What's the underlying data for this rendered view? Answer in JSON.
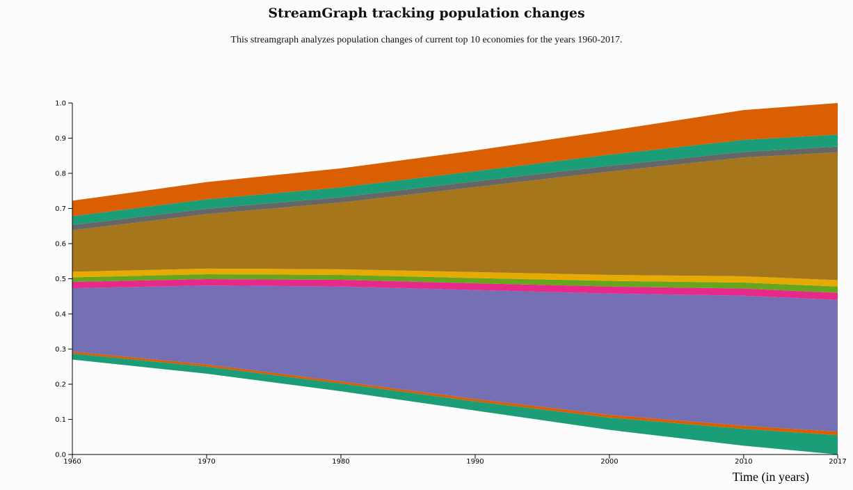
{
  "header": {
    "title": "StreamGraph tracking population changes",
    "subtitle": "This streamgraph analyzes population changes of current top 10 economies for the years 1960-2017."
  },
  "chart_data": {
    "type": "area",
    "title": "StreamGraph tracking population changes",
    "xlabel": "Time (in years)",
    "ylabel": "",
    "xlim": [
      1960,
      2017
    ],
    "ylim": [
      0,
      1.0
    ],
    "x_ticks": [
      "1960",
      "1970",
      "1980",
      "1990",
      "2000",
      "2010",
      "2017"
    ],
    "y_ticks": [
      "0.0",
      "0.1",
      "0.2",
      "0.3",
      "0.4",
      "0.5",
      "0.6",
      "0.7",
      "0.8",
      "0.9",
      "1.0"
    ],
    "grid": false,
    "legend": "none",
    "x": [
      1960,
      1970,
      1980,
      1990,
      2000,
      2010,
      2017
    ],
    "baseline": [
      0.27,
      0.23,
      0.18,
      0.125,
      0.07,
      0.025,
      0.0
    ],
    "series": [
      {
        "values": [
          0.017,
          0.02,
          0.022,
          0.026,
          0.035,
          0.048,
          0.055
        ],
        "color": "#1b9e77"
      },
      {
        "values": [
          0.006,
          0.006,
          0.006,
          0.007,
          0.008,
          0.009,
          0.01
        ],
        "color": "#d95f02"
      },
      {
        "values": [
          0.18,
          0.225,
          0.27,
          0.31,
          0.345,
          0.37,
          0.375
        ],
        "color": "#7570b3"
      },
      {
        "values": [
          0.018,
          0.018,
          0.019,
          0.019,
          0.02,
          0.02,
          0.02
        ],
        "color": "#e7298a"
      },
      {
        "values": [
          0.013,
          0.014,
          0.014,
          0.015,
          0.016,
          0.017,
          0.018
        ],
        "color": "#66a61e"
      },
      {
        "values": [
          0.016,
          0.016,
          0.016,
          0.017,
          0.017,
          0.018,
          0.018
        ],
        "color": "#e6ab02"
      },
      {
        "values": [
          0.118,
          0.155,
          0.19,
          0.242,
          0.294,
          0.338,
          0.364
        ],
        "color": "#a6761d"
      },
      {
        "values": [
          0.015,
          0.015,
          0.015,
          0.016,
          0.016,
          0.016,
          0.016
        ],
        "color": "#666666"
      },
      {
        "values": [
          0.025,
          0.027,
          0.028,
          0.029,
          0.032,
          0.034,
          0.034
        ],
        "color": "#1b9e77"
      },
      {
        "values": [
          0.044,
          0.049,
          0.054,
          0.059,
          0.068,
          0.085,
          0.09
        ],
        "color": "#d95f02"
      }
    ]
  }
}
